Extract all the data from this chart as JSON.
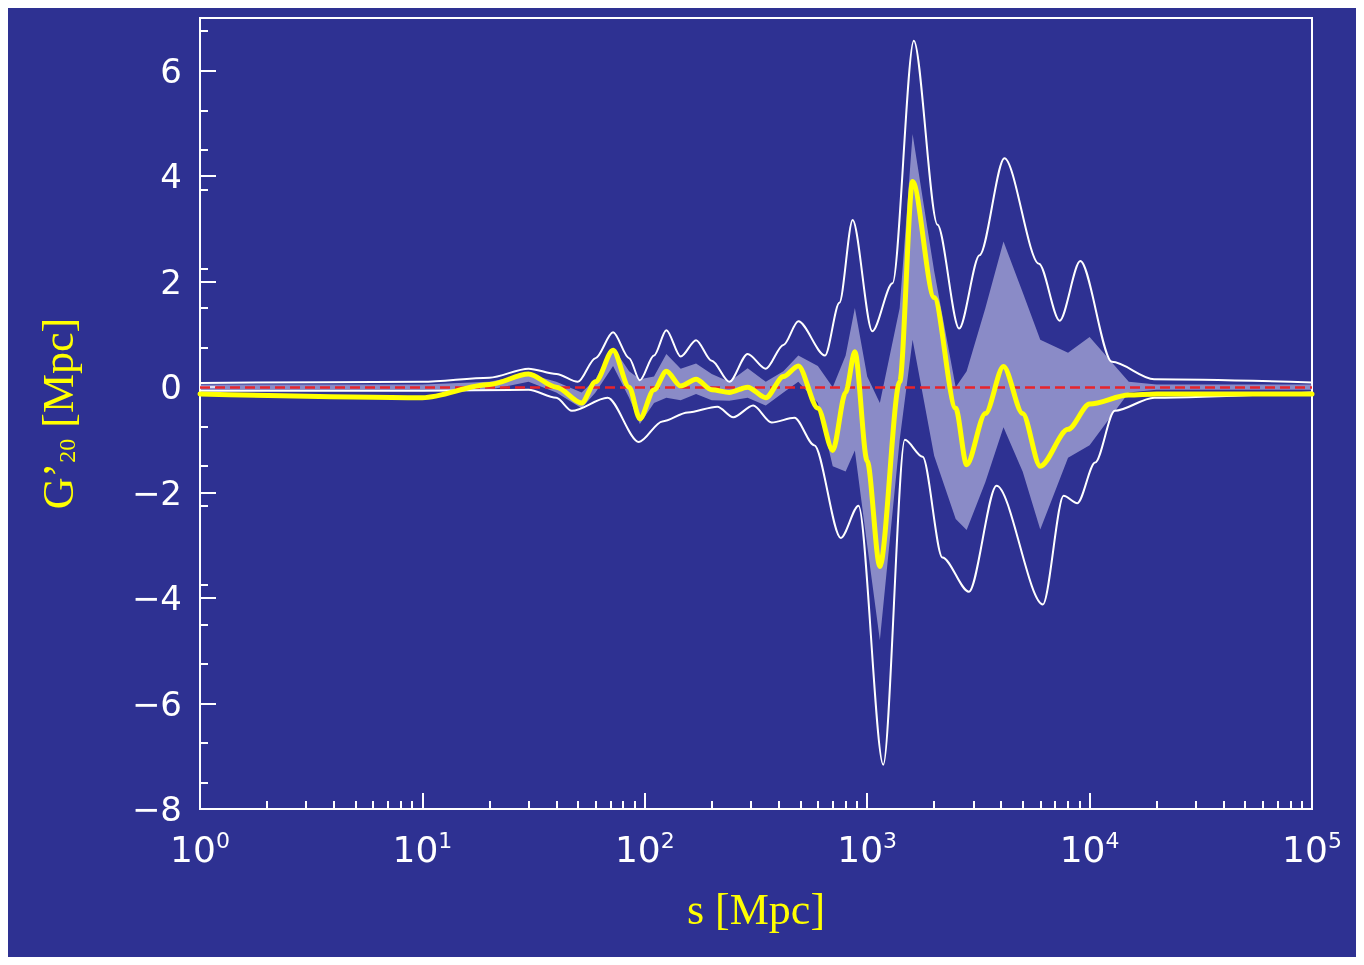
{
  "chart_data": {
    "type": "line",
    "xlabel": "s [Mpc]",
    "ylabel": "G’$_{20}$ [Mpc]",
    "log": "x",
    "grid": false,
    "marker": "none",
    "line_style": "solid",
    "xlim": [
      1,
      100000
    ],
    "xticks": [
      {
        "value": 1,
        "label": "10$^{0}$"
      },
      {
        "value": 10,
        "label": "10$^{1}$"
      },
      {
        "value": 100,
        "label": "10$^{2}$"
      },
      {
        "value": 1000,
        "label": "10$^{3}$"
      },
      {
        "value": 10000,
        "label": "10$^{4}$"
      },
      {
        "value": 100000,
        "label": "10$^{5}$"
      }
    ],
    "ylim": [
      -8,
      7
    ],
    "yticks": [
      -8,
      -6,
      -4,
      -2,
      0,
      2,
      4,
      6
    ],
    "ref_lines": [
      {
        "axis": "y",
        "value": 0,
        "color": "#e8242b",
        "line_style": "dashed"
      }
    ],
    "x": [
      1,
      10,
      20,
      30,
      40,
      52,
      60,
      72,
      85,
      95,
      110,
      125,
      145,
      170,
      200,
      240,
      290,
      350,
      420,
      490,
      600,
      700,
      800,
      880,
      1000,
      1140,
      1400,
      1600,
      2000,
      2500,
      2800,
      3400,
      4100,
      5000,
      6000,
      8000,
      10000,
      15000,
      20000,
      100000
    ],
    "series": [
      {
        "color": "#ffffff",
        "x": [
          1,
          10,
          20,
          30,
          40,
          50,
          60,
          72,
          85,
          95,
          110,
          125,
          145,
          170,
          200,
          240,
          290,
          350,
          420,
          490,
          646,
          750,
          860,
          1054,
          1300,
          1620,
          2070,
          2590,
          3200,
          4140,
          5920,
          7330,
          9080,
          12600,
          19500,
          100000
        ],
        "values": [
          0.08,
          0.1,
          0.18,
          0.35,
          0.25,
          0.1,
          0.55,
          1.04,
          0.55,
          0.13,
          0.6,
          1.08,
          0.58,
          0.89,
          0.5,
          0.1,
          0.63,
          0.35,
          0.8,
          1.25,
          0.6,
          1.6,
          3.17,
          1.06,
          1.97,
          6.57,
          3.08,
          1.11,
          2.5,
          4.34,
          2.34,
          1.26,
          2.39,
          0.48,
          0.15,
          0.09
        ]
      },
      {
        "color": "#ffffff",
        "x": [
          1,
          10,
          30,
          40,
          47,
          68,
          94,
          120,
          156,
          212,
          250,
          307,
          372,
          471,
          578,
          761,
          914,
          1181,
          1476,
          1775,
          2178,
          2866,
          3817,
          6166,
          7640,
          8810,
          10590,
          12970,
          19540,
          100000
        ],
        "values": [
          -0.07,
          -0.07,
          -0.05,
          -0.2,
          -0.45,
          -0.2,
          -1.04,
          -0.65,
          -0.48,
          -0.37,
          -0.57,
          -0.35,
          -0.67,
          -0.58,
          -1.1,
          -2.86,
          -2.25,
          -7.16,
          -1.0,
          -1.32,
          -3.23,
          -3.88,
          -1.87,
          -4.12,
          -2.06,
          -2.2,
          -1.43,
          -0.45,
          -0.2,
          -0.1
        ]
      },
      {
        "color": "#ffff00",
        "values": [
          -0.13,
          -0.2,
          0.05,
          0.25,
          0.0,
          -0.3,
          0.1,
          0.7,
          0.0,
          -0.6,
          -0.05,
          0.3,
          0.02,
          0.15,
          -0.05,
          -0.1,
          0.0,
          -0.2,
          0.2,
          0.4,
          -0.4,
          -1.2,
          -0.1,
          0.67,
          -1.4,
          -3.4,
          0.1,
          3.9,
          1.7,
          -0.4,
          -1.47,
          -0.5,
          0.39,
          -0.5,
          -1.5,
          -0.8,
          -0.32,
          -0.15,
          -0.13,
          -0.13
        ],
        "lower": [
          -0.05,
          -0.05,
          -0.05,
          0.1,
          -0.1,
          -0.4,
          -0.1,
          0.4,
          -0.2,
          -0.7,
          -0.3,
          -0.2,
          -0.25,
          -0.13,
          -0.25,
          -0.26,
          -0.2,
          -0.35,
          -0.1,
          0.1,
          -0.3,
          -1.5,
          -1.6,
          -1.2,
          -3.0,
          -4.8,
          -1.0,
          0.9,
          -1.3,
          -2.5,
          -2.71,
          -1.8,
          -0.76,
          -1.6,
          -2.7,
          -1.34,
          -1.1,
          -0.1,
          -0.05,
          -0.05
        ],
        "upper": [
          0.05,
          0.05,
          0.1,
          0.25,
          0.1,
          -0.1,
          0.15,
          0.75,
          0.3,
          0.15,
          0.2,
          0.63,
          0.35,
          0.45,
          0.25,
          0.1,
          0.36,
          0.1,
          0.3,
          0.6,
          0.4,
          0.0,
          0.6,
          1.5,
          0.2,
          -0.3,
          1.5,
          4.8,
          2.2,
          0.0,
          0.3,
          1.5,
          2.76,
          1.8,
          0.9,
          0.65,
          0.95,
          0.1,
          0.05,
          0.05
        ]
      }
    ]
  }
}
